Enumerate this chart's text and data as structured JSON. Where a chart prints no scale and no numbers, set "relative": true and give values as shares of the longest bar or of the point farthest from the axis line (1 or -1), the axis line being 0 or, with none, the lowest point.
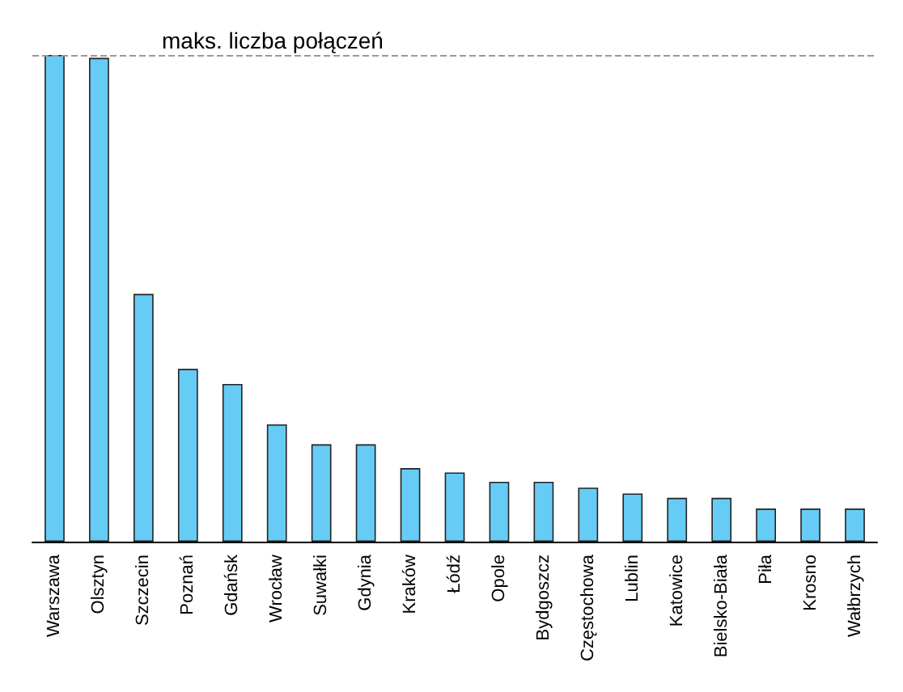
{
  "chart_data": {
    "type": "bar",
    "relative": true,
    "tick_labels": "x",
    "categories": [
      "Warszawa",
      "Olsztyn",
      "Szczecin",
      "Poznań",
      "Gdańsk",
      "Wrocław",
      "Suwałki",
      "Gdynia",
      "Kraków",
      "Łódź",
      "Opole",
      "Bydgoszcz",
      "Częstochowa",
      "Lublin",
      "Katowice",
      "Bielsko-Biała",
      "Piła",
      "Krosno",
      "Wałbrzych"
    ],
    "values": [
      1,
      0.994,
      0.509,
      0.355,
      0.324,
      0.241,
      0.2,
      0.2,
      0.151,
      0.142,
      0.123,
      0.123,
      0.111,
      0.099,
      0.09,
      0.09,
      0.068,
      0.068,
      0.068
    ],
    "color": "#66ccf5",
    "ref_lines": [
      {
        "axis": "y",
        "value": 1,
        "label": "maks. liczba połączeń",
        "color": "#999999",
        "line_style": "dashed"
      }
    ]
  }
}
